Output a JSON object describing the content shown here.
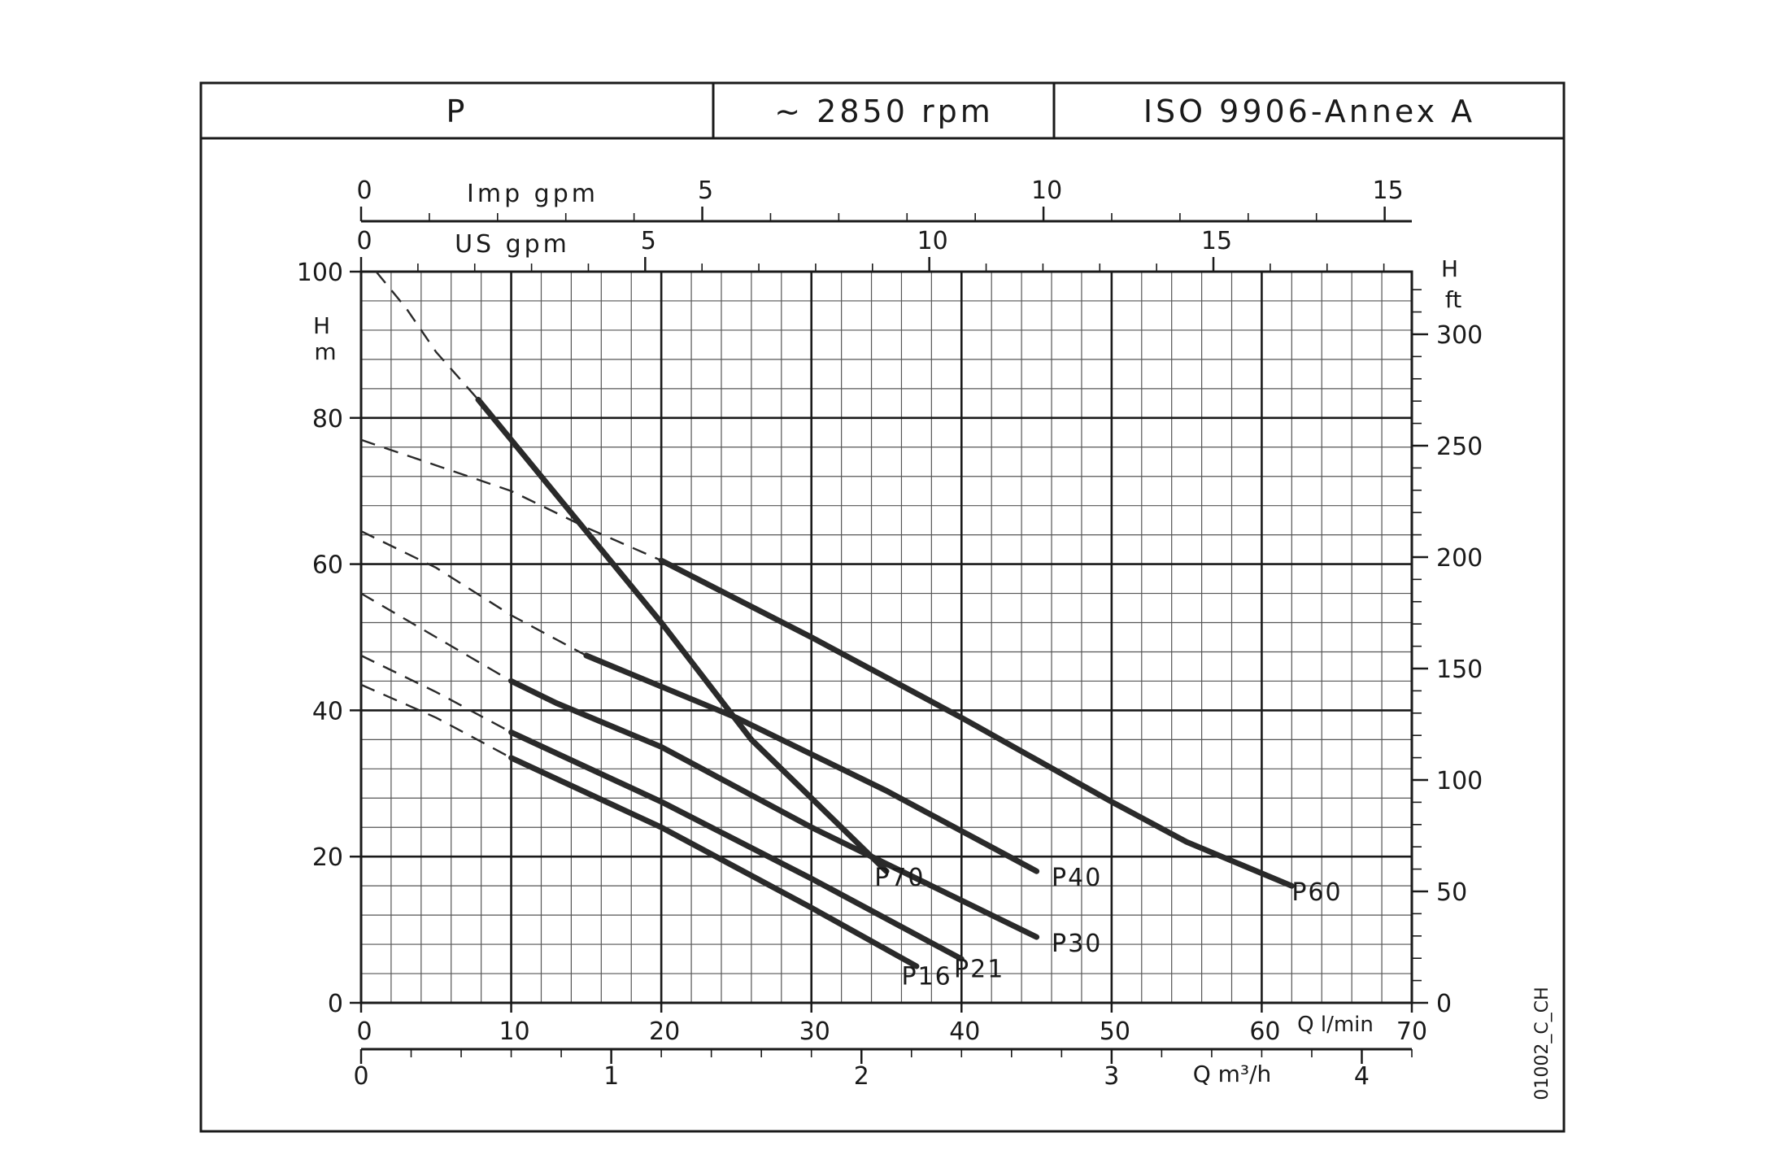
{
  "header": {
    "series_family": "P",
    "speed": "~ 2850 rpm",
    "standard": "ISO 9906-Annex A"
  },
  "code": "01002_C_CH",
  "chart_data": {
    "type": "line",
    "xlabel": "Q l/min",
    "ylabel": "H m",
    "xlim": [
      0,
      70
    ],
    "ylim": [
      0,
      100
    ],
    "x_ticks": [
      0,
      10,
      20,
      30,
      40,
      50,
      60,
      70
    ],
    "y_ticks": [
      0,
      20,
      40,
      60,
      80,
      100
    ],
    "grid": true,
    "secondary_axes": {
      "right": {
        "label": "H ft",
        "ticks": [
          0,
          50,
          100,
          150,
          200,
          250,
          300
        ]
      },
      "bottom": {
        "label": "Q m³/h",
        "ticks": [
          0,
          1,
          2,
          3,
          4
        ]
      },
      "top_us": {
        "label": "US gpm",
        "ticks": [
          0,
          5,
          10,
          15
        ]
      },
      "top_imp": {
        "label": "Imp gpm",
        "ticks": [
          0,
          5,
          10,
          15
        ]
      }
    },
    "series": [
      {
        "name": "P70",
        "dashed": [
          [
            1,
            100
          ],
          [
            3,
            95
          ],
          [
            5,
            89
          ],
          [
            7.8,
            82.5
          ]
        ],
        "solid": [
          [
            7.8,
            82.5
          ],
          [
            10,
            77
          ],
          [
            14,
            67
          ],
          [
            20,
            52
          ],
          [
            26,
            36
          ],
          [
            30,
            28
          ],
          [
            34,
            20
          ],
          [
            35,
            18
          ]
        ],
        "label_at": [
          34.2,
          16
        ]
      },
      {
        "name": "P60",
        "dashed": [
          [
            0,
            77
          ],
          [
            5,
            73.5
          ],
          [
            10,
            70
          ],
          [
            15,
            65
          ],
          [
            20,
            60.5
          ]
        ],
        "solid": [
          [
            20,
            60.5
          ],
          [
            30,
            50
          ],
          [
            40,
            39
          ],
          [
            50,
            27.5
          ],
          [
            55,
            22
          ],
          [
            62,
            16
          ]
        ],
        "label_at": [
          62,
          14
        ]
      },
      {
        "name": "P40",
        "dashed": [
          [
            0,
            64.5
          ],
          [
            5,
            59.5
          ],
          [
            10,
            53
          ],
          [
            15,
            47.5
          ]
        ],
        "solid": [
          [
            15,
            47.5
          ],
          [
            25,
            39
          ],
          [
            35,
            29
          ],
          [
            45,
            18
          ]
        ],
        "label_at": [
          46,
          16
        ]
      },
      {
        "name": "P30",
        "dashed": [
          [
            0,
            56
          ],
          [
            5,
            50
          ],
          [
            10,
            44
          ]
        ],
        "solid": [
          [
            10,
            44
          ],
          [
            13,
            41
          ],
          [
            20,
            35
          ],
          [
            30,
            24
          ],
          [
            40,
            14
          ],
          [
            45,
            9
          ]
        ],
        "label_at": [
          46,
          7
        ]
      },
      {
        "name": "P21",
        "dashed": [
          [
            0,
            47.5
          ],
          [
            5,
            42.5
          ],
          [
            10,
            37
          ]
        ],
        "solid": [
          [
            10,
            37
          ],
          [
            20,
            27.5
          ],
          [
            30,
            17
          ],
          [
            40,
            6
          ]
        ],
        "label_at": [
          39.5,
          3.5
        ]
      },
      {
        "name": "P16",
        "dashed": [
          [
            0,
            43.5
          ],
          [
            5,
            39
          ],
          [
            10,
            33.5
          ]
        ],
        "solid": [
          [
            10,
            33.5
          ],
          [
            20,
            24
          ],
          [
            30,
            13
          ],
          [
            37,
            5
          ]
        ],
        "label_at": [
          36,
          2.5
        ]
      }
    ]
  }
}
